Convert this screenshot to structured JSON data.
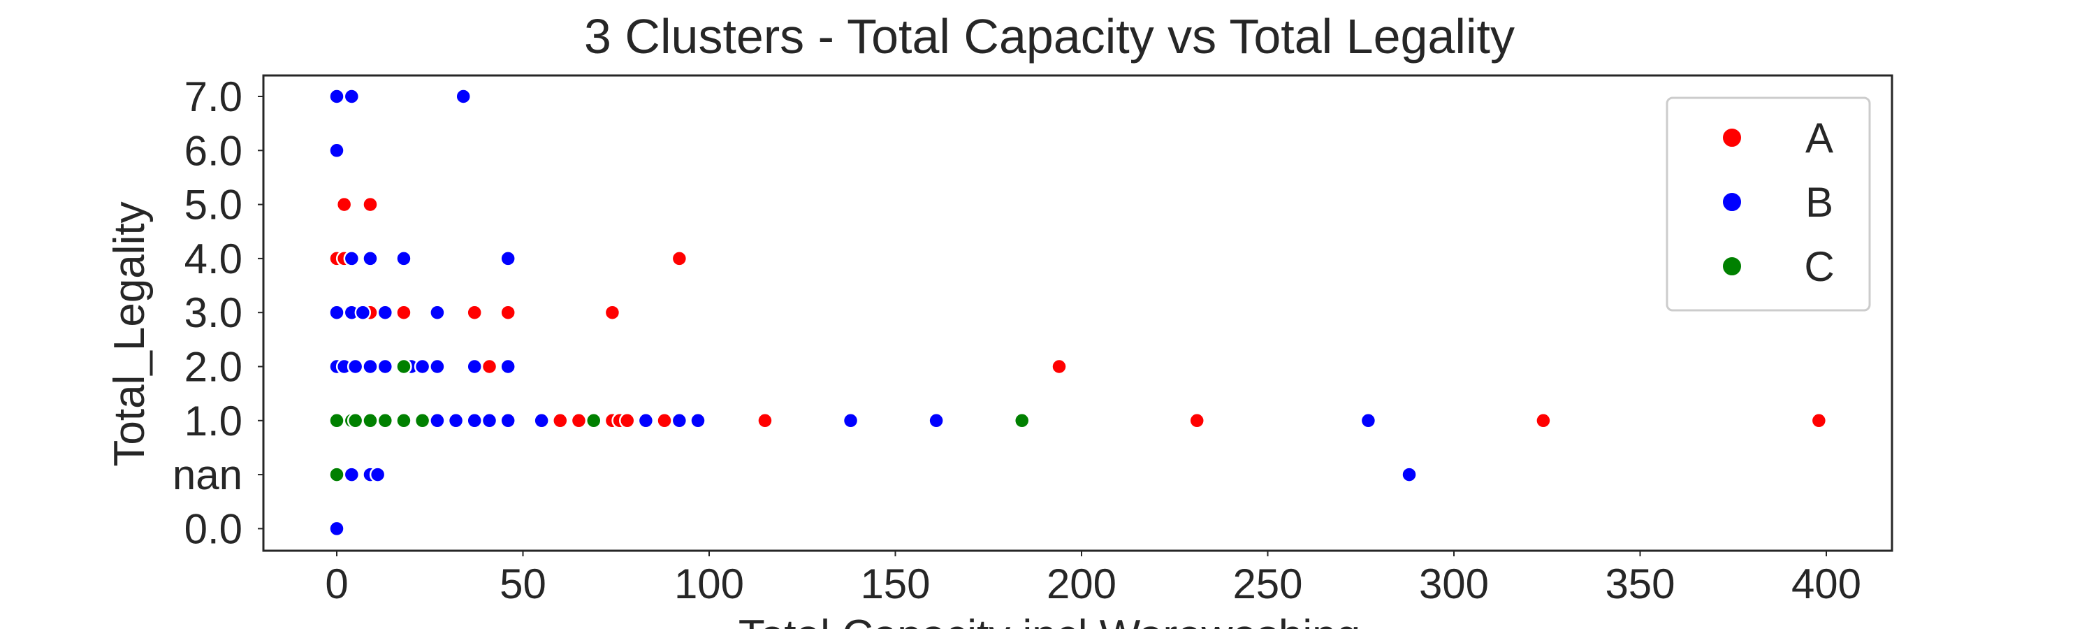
{
  "chart_data": {
    "type": "scatter",
    "title": "3 Clusters - Total Capacity vs Total Legality",
    "xlabel": "Total Capacity incl Warewashing",
    "ylabel": "Total_Legality",
    "xlim": [
      -20,
      420
    ],
    "x_ticks": [
      0,
      50,
      100,
      150,
      200,
      250,
      300,
      350,
      400
    ],
    "x_tick_labels": [
      "0",
      "50",
      "100",
      "150",
      "200",
      "250",
      "300",
      "350",
      "400"
    ],
    "y_categories": [
      "0.0",
      "nan",
      "1.0",
      "2.0",
      "3.0",
      "4.0",
      "5.0",
      "6.0",
      "7.0"
    ],
    "grid": false,
    "legend_position": "upper-right",
    "series": [
      {
        "name": "A",
        "color": "#ff0000",
        "points": [
          {
            "x": 2,
            "y": "5.0"
          },
          {
            "x": 9,
            "y": "5.0"
          },
          {
            "x": 0,
            "y": "4.0"
          },
          {
            "x": 2,
            "y": "4.0"
          },
          {
            "x": 92,
            "y": "4.0"
          },
          {
            "x": 9,
            "y": "3.0"
          },
          {
            "x": 18,
            "y": "3.0"
          },
          {
            "x": 37,
            "y": "3.0"
          },
          {
            "x": 46,
            "y": "3.0"
          },
          {
            "x": 74,
            "y": "3.0"
          },
          {
            "x": 41,
            "y": "2.0"
          },
          {
            "x": 194,
            "y": "2.0"
          },
          {
            "x": 60,
            "y": "1.0"
          },
          {
            "x": 65,
            "y": "1.0"
          },
          {
            "x": 74,
            "y": "1.0"
          },
          {
            "x": 76,
            "y": "1.0"
          },
          {
            "x": 78,
            "y": "1.0"
          },
          {
            "x": 88,
            "y": "1.0"
          },
          {
            "x": 115,
            "y": "1.0"
          },
          {
            "x": 231,
            "y": "1.0"
          },
          {
            "x": 324,
            "y": "1.0"
          },
          {
            "x": 398,
            "y": "1.0"
          }
        ]
      },
      {
        "name": "B",
        "color": "#0000ff",
        "points": [
          {
            "x": 0,
            "y": "7.0"
          },
          {
            "x": 4,
            "y": "7.0"
          },
          {
            "x": 34,
            "y": "7.0"
          },
          {
            "x": 0,
            "y": "6.0"
          },
          {
            "x": 4,
            "y": "4.0"
          },
          {
            "x": 9,
            "y": "4.0"
          },
          {
            "x": 18,
            "y": "4.0"
          },
          {
            "x": 46,
            "y": "4.0"
          },
          {
            "x": 0,
            "y": "3.0"
          },
          {
            "x": 4,
            "y": "3.0"
          },
          {
            "x": 7,
            "y": "3.0"
          },
          {
            "x": 13,
            "y": "3.0"
          },
          {
            "x": 27,
            "y": "3.0"
          },
          {
            "x": 0,
            "y": "2.0"
          },
          {
            "x": 2,
            "y": "2.0"
          },
          {
            "x": 5,
            "y": "2.0"
          },
          {
            "x": 9,
            "y": "2.0"
          },
          {
            "x": 13,
            "y": "2.0"
          },
          {
            "x": 20,
            "y": "2.0"
          },
          {
            "x": 23,
            "y": "2.0"
          },
          {
            "x": 27,
            "y": "2.0"
          },
          {
            "x": 37,
            "y": "2.0"
          },
          {
            "x": 46,
            "y": "2.0"
          },
          {
            "x": 27,
            "y": "1.0"
          },
          {
            "x": 32,
            "y": "1.0"
          },
          {
            "x": 37,
            "y": "1.0"
          },
          {
            "x": 41,
            "y": "1.0"
          },
          {
            "x": 46,
            "y": "1.0"
          },
          {
            "x": 55,
            "y": "1.0"
          },
          {
            "x": 83,
            "y": "1.0"
          },
          {
            "x": 92,
            "y": "1.0"
          },
          {
            "x": 97,
            "y": "1.0"
          },
          {
            "x": 138,
            "y": "1.0"
          },
          {
            "x": 161,
            "y": "1.0"
          },
          {
            "x": 277,
            "y": "1.0"
          },
          {
            "x": 4,
            "y": "nan"
          },
          {
            "x": 9,
            "y": "nan"
          },
          {
            "x": 11,
            "y": "nan"
          },
          {
            "x": 288,
            "y": "nan"
          },
          {
            "x": 0,
            "y": "0.0"
          }
        ]
      },
      {
        "name": "C",
        "color": "#008000",
        "points": [
          {
            "x": 18,
            "y": "2.0"
          },
          {
            "x": 0,
            "y": "1.0"
          },
          {
            "x": 4,
            "y": "1.0"
          },
          {
            "x": 5,
            "y": "1.0"
          },
          {
            "x": 9,
            "y": "1.0"
          },
          {
            "x": 13,
            "y": "1.0"
          },
          {
            "x": 18,
            "y": "1.0"
          },
          {
            "x": 23,
            "y": "1.0"
          },
          {
            "x": 69,
            "y": "1.0"
          },
          {
            "x": 184,
            "y": "1.0"
          },
          {
            "x": 0,
            "y": "nan"
          }
        ]
      }
    ]
  }
}
